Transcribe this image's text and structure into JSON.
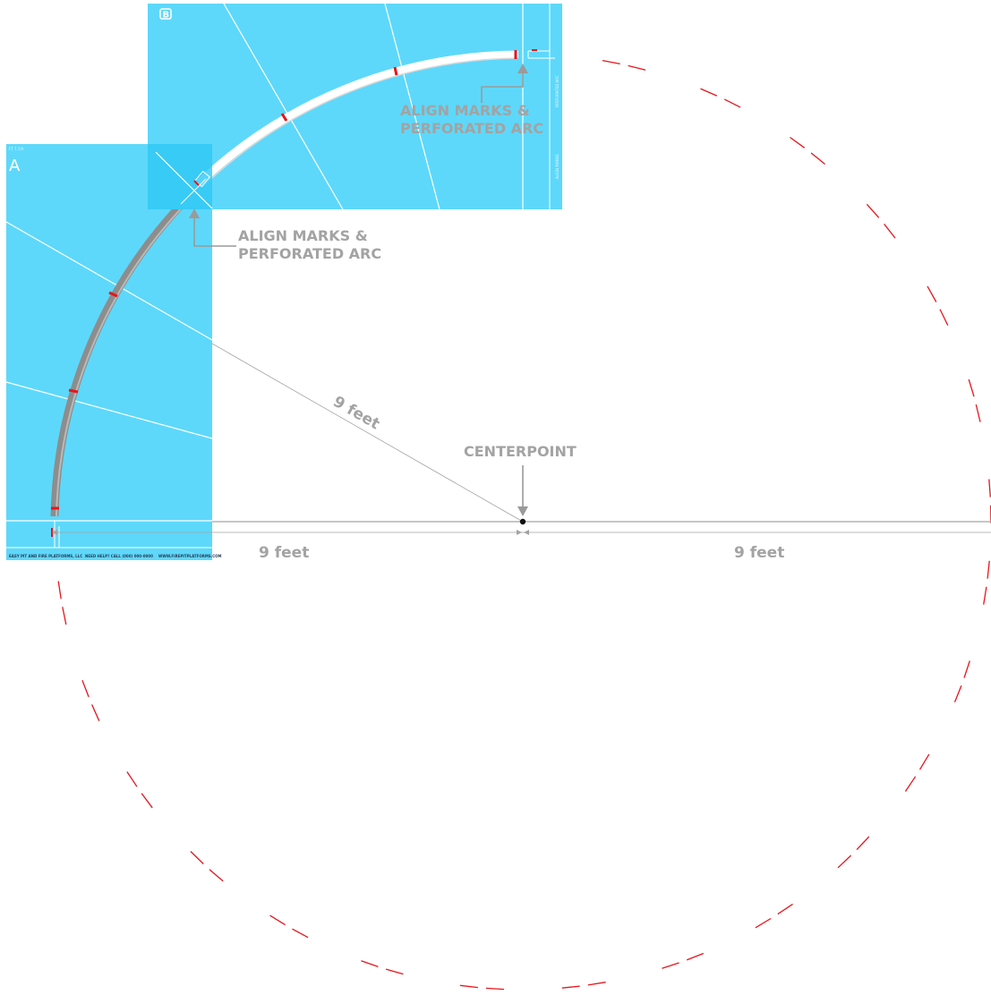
{
  "sheets": {
    "a": {
      "letter": "A",
      "code": "FT 7.7/A",
      "footer_left": "EASY PIT AND FIRE PLATFORMS, LLC",
      "footer_mid": "NEED HELP? CALL (000) 000-0000",
      "footer_right": "WWW.FIREPITPLATFORMS.COM"
    },
    "b": {
      "letter": "B",
      "side_text_1": "PERFORATED ARC",
      "side_text_2": "ALIGN MARKS"
    }
  },
  "labels": {
    "align_b_1": "ALIGN MARKS &",
    "align_b_2": "PERFORATED ARC",
    "align_a_1": "ALIGN MARKS &",
    "align_a_2": "PERFORATED ARC",
    "radius": "9 feet",
    "centerpoint": "CENTERPOINT",
    "left_dim": "9 feet",
    "right_dim": "9 feet"
  },
  "colors": {
    "sheet": "#5dd8fa",
    "overlap": "#2ec8f5",
    "label": "#a3a3a3",
    "arc_red": "#e8141c",
    "guide": "#9a9a9a"
  }
}
